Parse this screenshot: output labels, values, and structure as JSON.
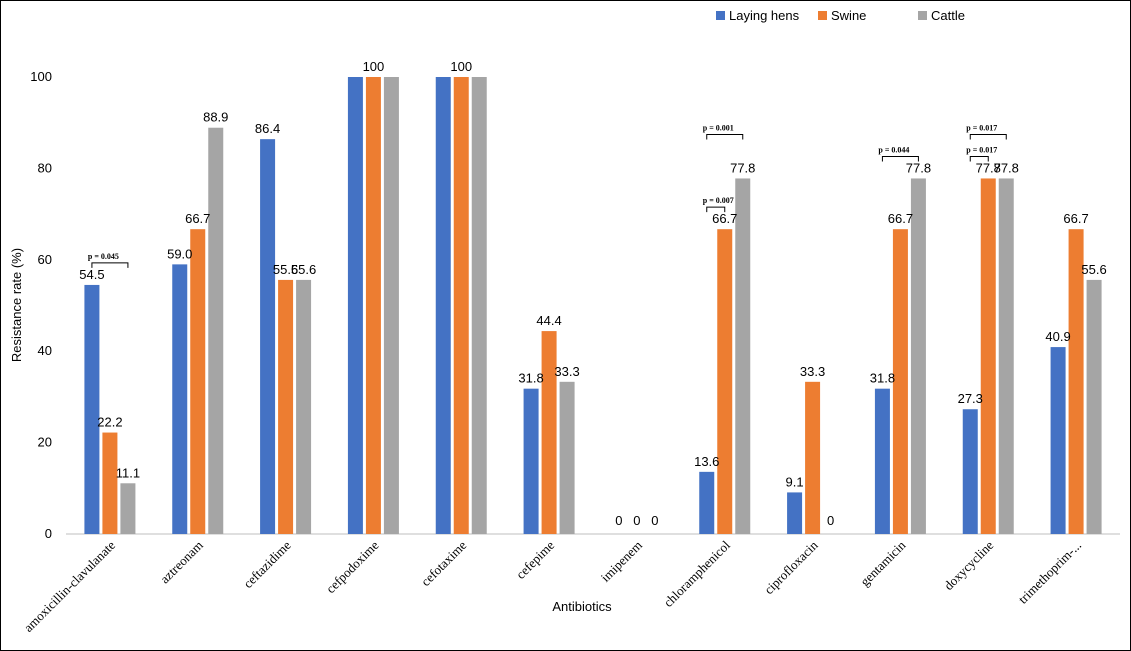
{
  "chart_data": {
    "type": "bar",
    "title": "",
    "xlabel": "Antibiotics",
    "ylabel": "Resistance rate (%)",
    "ylim": [
      0,
      100
    ],
    "yticks": [
      0,
      20,
      40,
      60,
      80,
      100
    ],
    "grid": false,
    "legend_position": "top-right",
    "categories": [
      "amoxicillin-clavulanate",
      "aztreonam",
      "ceftazidime",
      "cefpodoxime",
      "cefotaxime",
      "cefepime",
      "imipenem",
      "chloramphenicol",
      "ciprofloxacin",
      "gentamicin",
      "doxycycline",
      "trimethoprim-..."
    ],
    "series": [
      {
        "name": "Laying hens",
        "color": "#4472C4",
        "values": [
          54.5,
          59.0,
          86.4,
          100,
          100,
          31.8,
          0,
          13.6,
          9.1,
          31.8,
          27.3,
          40.9
        ]
      },
      {
        "name": "Swine",
        "color": "#ED7D31",
        "values": [
          22.2,
          66.7,
          55.6,
          100,
          100,
          44.4,
          0,
          66.7,
          33.3,
          66.7,
          77.8,
          66.7
        ]
      },
      {
        "name": "Cattle",
        "color": "#A5A5A5",
        "values": [
          11.1,
          88.9,
          55.6,
          100,
          100,
          33.3,
          0,
          77.8,
          0,
          77.8,
          77.8,
          55.6
        ]
      }
    ],
    "data_labels": [
      [
        "54.5",
        "22.2",
        "11.1"
      ],
      [
        "59.0",
        "66.7",
        "88.9"
      ],
      [
        "86.4",
        "55.6",
        "55.6"
      ],
      [
        "",
        "100",
        ""
      ],
      [
        "",
        "100",
        ""
      ],
      [
        "31.8",
        "44.4",
        "33.3"
      ],
      [
        "0",
        "0",
        "0"
      ],
      [
        "13.6",
        "66.7",
        "77.8"
      ],
      [
        "9.1",
        "33.3",
        "0"
      ],
      [
        "31.8",
        "66.7",
        "77.8"
      ],
      [
        "27.3",
        "77.8",
        "77.8"
      ],
      [
        "40.9",
        "66.7",
        "55.6"
      ]
    ],
    "annotations": [
      {
        "category": "amoxicillin-clavulanate",
        "from": "Laying hens",
        "to": "Cattle",
        "text": "p = 0.045",
        "level": 0
      },
      {
        "category": "chloramphenicol",
        "from": "Laying hens",
        "to": "Swine",
        "text": "p = 0.007",
        "level": 0
      },
      {
        "category": "chloramphenicol",
        "from": "Laying hens",
        "to": "Cattle",
        "text": "p = 0.001",
        "level": 1
      },
      {
        "category": "gentamicin",
        "from": "Laying hens",
        "to": "Cattle",
        "text": "p = 0.044",
        "level": 0
      },
      {
        "category": "doxycycline",
        "from": "Laying hens",
        "to": "Swine",
        "text": "p = 0.017",
        "level": 0
      },
      {
        "category": "doxycycline",
        "from": "Laying hens",
        "to": "Cattle",
        "text": "p = 0.017",
        "level": 1
      }
    ]
  }
}
